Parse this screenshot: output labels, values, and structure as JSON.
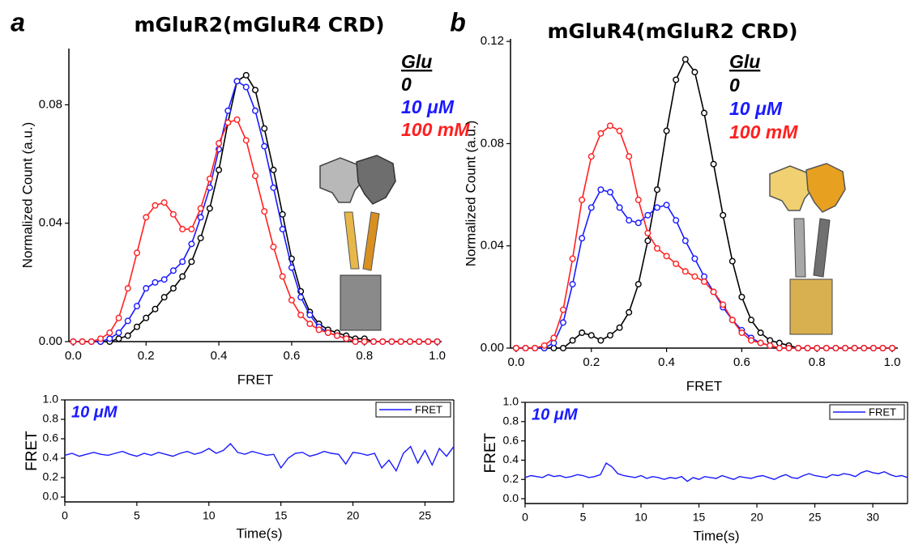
{
  "chart_data": [
    {
      "type": "line",
      "panel_label": "a",
      "title": "mGluR2(mGluR4 CRD)",
      "x_label": "FRET",
      "y_label": "Normalized Count (a.u.)",
      "legend_title": "Glu",
      "markers": true,
      "x": [
        0,
        0.025,
        0.05,
        0.075,
        0.1,
        0.125,
        0.15,
        0.175,
        0.2,
        0.225,
        0.25,
        0.275,
        0.3,
        0.325,
        0.35,
        0.375,
        0.4,
        0.425,
        0.45,
        0.475,
        0.5,
        0.525,
        0.55,
        0.575,
        0.6,
        0.625,
        0.65,
        0.675,
        0.7,
        0.725,
        0.75,
        0.775,
        0.8,
        0.825,
        0.85,
        0.875,
        0.9,
        0.925,
        0.95,
        0.975,
        1
      ],
      "series": [
        {
          "name": "0",
          "color": "#000000",
          "values": [
            0,
            0,
            0,
            0,
            0,
            0.001,
            0.002,
            0.005,
            0.008,
            0.011,
            0.015,
            0.018,
            0.022,
            0.027,
            0.035,
            0.045,
            0.058,
            0.074,
            0.088,
            0.09,
            0.085,
            0.072,
            0.058,
            0.043,
            0.028,
            0.017,
            0.01,
            0.006,
            0.004,
            0.003,
            0.002,
            0.001,
            0.001,
            0,
            0,
            0,
            0,
            0,
            0,
            0,
            0
          ]
        },
        {
          "name": "10 μM",
          "color": "#1a1aff",
          "values": [
            0,
            0,
            0,
            0,
            0.001,
            0.003,
            0.007,
            0.012,
            0.018,
            0.02,
            0.021,
            0.024,
            0.027,
            0.033,
            0.042,
            0.052,
            0.065,
            0.078,
            0.088,
            0.086,
            0.078,
            0.066,
            0.052,
            0.038,
            0.025,
            0.015,
            0.009,
            0.005,
            0.003,
            0.002,
            0.001,
            0,
            0,
            0,
            0,
            0,
            0,
            0,
            0,
            0,
            0
          ]
        },
        {
          "name": "100 mM",
          "color": "#ff2020",
          "values": [
            0,
            0,
            0,
            0.001,
            0.003,
            0.008,
            0.018,
            0.03,
            0.042,
            0.046,
            0.047,
            0.043,
            0.038,
            0.038,
            0.045,
            0.055,
            0.067,
            0.074,
            0.075,
            0.068,
            0.056,
            0.044,
            0.032,
            0.022,
            0.014,
            0.009,
            0.006,
            0.004,
            0.003,
            0.002,
            0.001,
            0,
            0,
            0,
            0,
            0,
            0,
            0,
            0,
            0,
            0
          ]
        }
      ],
      "xlim": [
        -0.012,
        1.012
      ],
      "xticks": [
        {
          "value": 0,
          "label": "0.0"
        },
        0.2,
        0.4,
        0.6,
        0.8,
        {
          "value": 1,
          "label": "1.0"
        }
      ],
      "ylim": [
        0,
        0.099
      ],
      "yticks": [
        {
          "value": 0,
          "label": "0.00"
        },
        0.04,
        0.08
      ]
    },
    {
      "type": "line",
      "panel_label": "b",
      "title": "mGluR4(mGluR2 CRD)",
      "x_label": "FRET",
      "y_label": "Normalized Count (a.u.)",
      "legend_title": "Glu",
      "markers": true,
      "x": [
        0,
        0.025,
        0.05,
        0.075,
        0.1,
        0.125,
        0.15,
        0.175,
        0.2,
        0.225,
        0.25,
        0.275,
        0.3,
        0.325,
        0.35,
        0.375,
        0.4,
        0.425,
        0.45,
        0.475,
        0.5,
        0.525,
        0.55,
        0.575,
        0.6,
        0.625,
        0.65,
        0.675,
        0.7,
        0.725,
        0.75,
        0.775,
        0.8,
        0.825,
        0.85,
        0.875,
        0.9,
        0.925,
        0.95,
        0.975,
        1
      ],
      "series": [
        {
          "name": "0",
          "color": "#000000",
          "values": [
            0,
            0,
            0,
            0,
            0,
            0,
            0.003,
            0.006,
            0.005,
            0.003,
            0.005,
            0.008,
            0.014,
            0.025,
            0.042,
            0.062,
            0.085,
            0.105,
            0.113,
            0.108,
            0.092,
            0.072,
            0.052,
            0.034,
            0.02,
            0.011,
            0.006,
            0.003,
            0.002,
            0.001,
            0,
            0,
            0,
            0,
            0,
            0,
            0,
            0,
            0,
            0,
            0
          ]
        },
        {
          "name": "10 μM",
          "color": "#1a1aff",
          "values": [
            0,
            0,
            0,
            0,
            0.002,
            0.01,
            0.025,
            0.043,
            0.055,
            0.062,
            0.061,
            0.055,
            0.05,
            0.049,
            0.052,
            0.055,
            0.056,
            0.05,
            0.042,
            0.035,
            0.028,
            0.022,
            0.016,
            0.011,
            0.007,
            0.004,
            0.002,
            0.001,
            0,
            0,
            0,
            0,
            0,
            0,
            0,
            0,
            0,
            0,
            0,
            0,
            0
          ]
        },
        {
          "name": "100 mM",
          "color": "#ff2020",
          "values": [
            0,
            0,
            0,
            0.001,
            0.004,
            0.015,
            0.035,
            0.058,
            0.075,
            0.084,
            0.087,
            0.085,
            0.075,
            0.058,
            0.045,
            0.039,
            0.036,
            0.033,
            0.03,
            0.028,
            0.026,
            0.022,
            0.017,
            0.011,
            0.006,
            0.003,
            0.002,
            0.001,
            0,
            0,
            0,
            0,
            0,
            0,
            0,
            0,
            0,
            0,
            0,
            0,
            0
          ]
        }
      ],
      "xlim": [
        -0.015,
        1.015
      ],
      "xticks": [
        {
          "value": 0,
          "label": "0.0"
        },
        0.2,
        0.4,
        0.6,
        0.8,
        {
          "value": 1,
          "label": "1.0"
        }
      ],
      "ylim": [
        0,
        0.121
      ],
      "yticks": [
        {
          "value": 0,
          "label": "0.00"
        },
        0.04,
        0.08,
        0.12
      ]
    },
    {
      "type": "line",
      "x_label": "Time(s)",
      "y_label": "FRET",
      "annotation": "10 μM",
      "legend": "upper right",
      "x": [
        0,
        0.5,
        1,
        1.5,
        2,
        2.5,
        3,
        3.5,
        4,
        4.5,
        5,
        5.5,
        6,
        6.5,
        7,
        7.5,
        8,
        8.5,
        9,
        9.5,
        10,
        10.5,
        11,
        11.5,
        12,
        12.5,
        13,
        13.5,
        14,
        14.5,
        15,
        15.5,
        16,
        16.5,
        17,
        17.5,
        18,
        18.5,
        19,
        19.5,
        20,
        20.5,
        21,
        21.5,
        22,
        22.5,
        23,
        23.5,
        24,
        24.5,
        25,
        25.5,
        26,
        26.5,
        27
      ],
      "series": [
        {
          "name": "FRET",
          "color": "#1a1aff",
          "values": [
            0.43,
            0.45,
            0.42,
            0.44,
            0.46,
            0.44,
            0.43,
            0.45,
            0.47,
            0.44,
            0.42,
            0.45,
            0.43,
            0.46,
            0.44,
            0.42,
            0.45,
            0.47,
            0.44,
            0.46,
            0.5,
            0.45,
            0.48,
            0.55,
            0.46,
            0.44,
            0.47,
            0.45,
            0.43,
            0.44,
            0.3,
            0.4,
            0.45,
            0.46,
            0.42,
            0.44,
            0.47,
            0.45,
            0.44,
            0.34,
            0.46,
            0.45,
            0.43,
            0.45,
            0.3,
            0.38,
            0.27,
            0.45,
            0.52,
            0.35,
            0.48,
            0.33,
            0.5,
            0.42,
            0.52
          ]
        }
      ],
      "xlim": [
        0,
        27
      ],
      "xticks": [
        0,
        5,
        10,
        15,
        20,
        25
      ],
      "ylim": [
        -0.05,
        1.0
      ],
      "yticks": [
        {
          "value": 0,
          "label": "0.0"
        },
        0.2,
        0.4,
        0.6,
        0.8,
        {
          "value": 1,
          "label": "1.0"
        }
      ]
    },
    {
      "type": "line",
      "x_label": "Time(s)",
      "y_label": "FRET",
      "annotation": "10 μM",
      "legend": "upper right",
      "x": [
        0,
        0.5,
        1,
        1.5,
        2,
        2.5,
        3,
        3.5,
        4,
        4.5,
        5,
        5.5,
        6,
        6.5,
        7,
        7.5,
        8,
        8.5,
        9,
        9.5,
        10,
        10.5,
        11,
        11.5,
        12,
        12.5,
        13,
        13.5,
        14,
        14.5,
        15,
        15.5,
        16,
        16.5,
        17,
        17.5,
        18,
        18.5,
        19,
        19.5,
        20,
        20.5,
        21,
        21.5,
        22,
        22.5,
        23,
        23.5,
        24,
        24.5,
        25,
        25.5,
        26,
        26.5,
        27,
        27.5,
        28,
        28.5,
        29,
        29.5,
        30,
        30.5,
        31,
        31.5,
        32,
        32.5,
        33
      ],
      "series": [
        {
          "name": "FRET",
          "color": "#1a1aff",
          "values": [
            0.22,
            0.24,
            0.23,
            0.22,
            0.25,
            0.23,
            0.24,
            0.22,
            0.23,
            0.25,
            0.24,
            0.22,
            0.23,
            0.25,
            0.37,
            0.33,
            0.26,
            0.24,
            0.23,
            0.22,
            0.24,
            0.21,
            0.23,
            0.22,
            0.2,
            0.22,
            0.21,
            0.23,
            0.18,
            0.22,
            0.2,
            0.23,
            0.22,
            0.21,
            0.24,
            0.22,
            0.2,
            0.23,
            0.22,
            0.21,
            0.23,
            0.24,
            0.22,
            0.2,
            0.23,
            0.25,
            0.22,
            0.21,
            0.24,
            0.26,
            0.24,
            0.23,
            0.22,
            0.25,
            0.24,
            0.26,
            0.25,
            0.23,
            0.27,
            0.29,
            0.27,
            0.26,
            0.28,
            0.25,
            0.23,
            0.24,
            0.22
          ]
        }
      ],
      "xlim": [
        0,
        33
      ],
      "xticks": [
        0,
        5,
        10,
        15,
        20,
        25,
        30
      ],
      "ylim": [
        -0.05,
        1.0
      ],
      "yticks": [
        {
          "value": 0,
          "label": "0.0"
        },
        0.2,
        0.4,
        0.6,
        0.8,
        {
          "value": 1,
          "label": "1.0"
        }
      ]
    }
  ]
}
